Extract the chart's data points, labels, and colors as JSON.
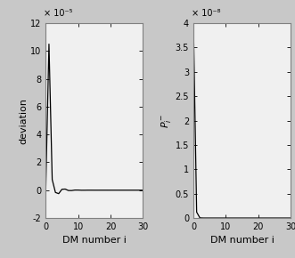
{
  "n_points": 30,
  "left_ylim": [
    -2e-05,
    0.00012
  ],
  "left_ylabel": "deviation",
  "right_ylim": [
    0,
    4e-08
  ],
  "right_ylabel": "P_i^-",
  "xlabel": "DM number i",
  "xlim": [
    0,
    30
  ],
  "xticks": [
    0,
    10,
    20,
    30
  ],
  "left_ytick_vals": [
    -2e-05,
    0,
    2e-05,
    4e-05,
    6e-05,
    8e-05,
    0.0001,
    0.00012
  ],
  "left_ytick_labels": [
    "-2",
    "0",
    "2",
    "4",
    "6",
    "8",
    "10",
    "12"
  ],
  "right_ytick_vals": [
    0,
    5e-09,
    1e-08,
    1.5e-08,
    2e-08,
    2.5e-08,
    3e-08,
    3.5e-08,
    4e-08
  ],
  "right_ytick_labels": [
    "0",
    "0.5",
    "1",
    "1.5",
    "2",
    "2.5",
    "3",
    "3.5",
    "4"
  ],
  "line_color": "#000000",
  "bg_color": "#c8c8c8",
  "plot_bg": "#f0f0f0",
  "spine_color": "#808080",
  "left_exponent": "× 10⁻⁵",
  "right_exponent": "× 10⁻⁸"
}
